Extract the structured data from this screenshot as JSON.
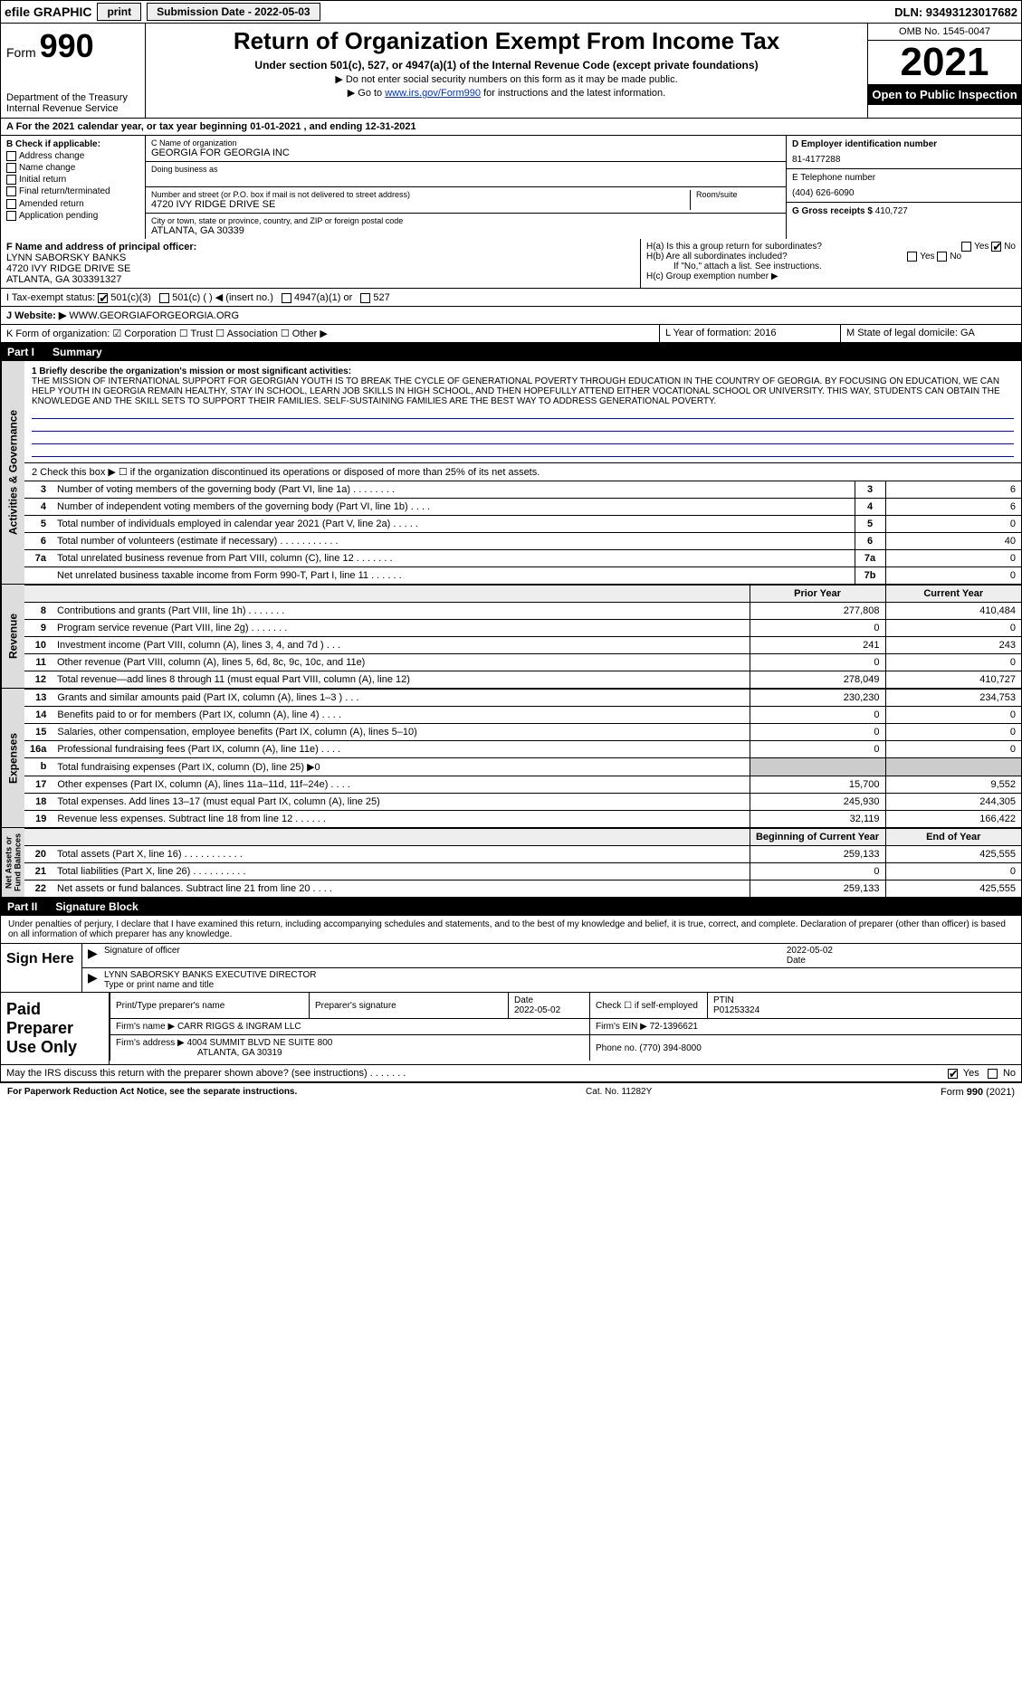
{
  "top": {
    "efile": "efile GRAPHIC",
    "print_btn": "print",
    "sub_date_label": "Submission Date - 2022-05-03",
    "dln": "DLN: 93493123017682"
  },
  "header": {
    "form_prefix": "Form",
    "form_num": "990",
    "dept": "Department of the Treasury",
    "irs": "Internal Revenue Service",
    "title": "Return of Organization Exempt From Income Tax",
    "subtitle": "Under section 501(c), 527, or 4947(a)(1) of the Internal Revenue Code (except private foundations)",
    "note1": "▶ Do not enter social security numbers on this form as it may be made public.",
    "note2_pre": "▶ Go to ",
    "note2_link": "www.irs.gov/Form990",
    "note2_post": " for instructions and the latest information.",
    "omb": "OMB No. 1545-0047",
    "year": "2021",
    "open": "Open to Public Inspection"
  },
  "period": "A For the 2021 calendar year, or tax year beginning 01-01-2021    , and ending 12-31-2021",
  "boxB": {
    "label": "B Check if applicable:",
    "opts": [
      "Address change",
      "Name change",
      "Initial return",
      "Final return/terminated",
      "Amended return",
      "Application pending"
    ]
  },
  "boxC": {
    "name_lbl": "C Name of organization",
    "name": "GEORGIA FOR GEORGIA INC",
    "dba_lbl": "Doing business as",
    "dba": "",
    "addr_lbl": "Number and street (or P.O. box if mail is not delivered to street address)",
    "addr": "4720 IVY RIDGE DRIVE SE",
    "room_lbl": "Room/suite",
    "city_lbl": "City or town, state or province, country, and ZIP or foreign postal code",
    "city": "ATLANTA, GA  30339"
  },
  "boxD": {
    "lbl": "D Employer identification number",
    "val": "81-4177288"
  },
  "boxE": {
    "lbl": "E Telephone number",
    "val": "(404) 626-6090"
  },
  "boxG": {
    "lbl": "G Gross receipts $",
    "val": "410,727"
  },
  "boxF": {
    "lbl": "F  Name and address of principal officer:",
    "name": "LYNN SABORSKY BANKS",
    "addr1": "4720 IVY RIDGE DRIVE SE",
    "addr2": "ATLANTA, GA  303391327"
  },
  "boxH": {
    "a": "H(a)  Is this a group return for subordinates?",
    "b": "H(b)  Are all subordinates included?",
    "b_note": "If \"No,\" attach a list. See instructions.",
    "c": "H(c)  Group exemption number ▶"
  },
  "boxI": {
    "lbl": "I    Tax-exempt status:",
    "opts": [
      "501(c)(3)",
      "501(c) (  ) ◀ (insert no.)",
      "4947(a)(1) or",
      "527"
    ]
  },
  "boxJ": {
    "lbl": "J   Website: ▶",
    "val": "WWW.GEORGIAFORGEORGIA.ORG"
  },
  "boxK": "K Form of organization:    ☑ Corporation  ☐ Trust  ☐ Association  ☐ Other ▶",
  "boxL": {
    "lbl": "L Year of formation:",
    "val": "2016"
  },
  "boxM": {
    "lbl": "M State of legal domicile:",
    "val": "GA"
  },
  "part1": {
    "title": "Part I",
    "name": "Summary",
    "mission_lbl": "1   Briefly describe the organization's mission or most significant activities:",
    "mission": "THE MISSION OF INTERNATIONAL SUPPORT FOR GEORGIAN YOUTH IS TO BREAK THE CYCLE OF GENERATIONAL POVERTY THROUGH EDUCATION IN THE COUNTRY OF GEORGIA. BY FOCUSING ON EDUCATION, WE CAN HELP YOUTH IN GEORGIA REMAIN HEALTHY, STAY IN SCHOOL, LEARN JOB SKILLS IN HIGH SCHOOL, AND THEN HOPEFULLY ATTEND EITHER VOCATIONAL SCHOOL OR UNIVERSITY. THIS WAY, STUDENTS CAN OBTAIN THE KNOWLEDGE AND THE SKILL SETS TO SUPPORT THEIR FAMILIES. SELF-SUSTAINING FAMILIES ARE THE BEST WAY TO ADDRESS GENERATIONAL POVERTY.",
    "line2": "2   Check this box ▶ ☐ if the organization discontinued its operations or disposed of more than 25% of its net assets.",
    "gov_rows": [
      {
        "n": "3",
        "t": "Number of voting members of the governing body (Part VI, line 1a)   .    .    .    .    .    .    .    .",
        "box": "3",
        "v": "6"
      },
      {
        "n": "4",
        "t": "Number of independent voting members of the governing body (Part VI, line 1b)   .    .    .    .",
        "box": "4",
        "v": "6"
      },
      {
        "n": "5",
        "t": "Total number of individuals employed in calendar year 2021 (Part V, line 2a)   .    .    .    .    .",
        "box": "5",
        "v": "0"
      },
      {
        "n": "6",
        "t": "Total number of volunteers (estimate if necessary)   .    .    .    .    .    .    .    .    .    .    .",
        "box": "6",
        "v": "40"
      },
      {
        "n": "7a",
        "t": "Total unrelated business revenue from Part VIII, column (C), line 12   .    .    .    .    .    .    .",
        "box": "7a",
        "v": "0"
      },
      {
        "n": "",
        "t": "Net unrelated business taxable income from Form 990-T, Part I, line 11   .    .    .    .    .    .",
        "box": "7b",
        "v": "0"
      }
    ],
    "col_hdr": [
      "Prior Year",
      "Current Year"
    ],
    "rev_rows": [
      {
        "n": "8",
        "t": "Contributions and grants (Part VIII, line 1h)   .    .    .    .    .    .    .",
        "p": "277,808",
        "c": "410,484"
      },
      {
        "n": "9",
        "t": "Program service revenue (Part VIII, line 2g)   .    .    .    .    .    .    .",
        "p": "0",
        "c": "0"
      },
      {
        "n": "10",
        "t": "Investment income (Part VIII, column (A), lines 3, 4, and 7d )   .    .    .",
        "p": "241",
        "c": "243"
      },
      {
        "n": "11",
        "t": "Other revenue (Part VIII, column (A), lines 5, 6d, 8c, 9c, 10c, and 11e)",
        "p": "0",
        "c": "0"
      },
      {
        "n": "12",
        "t": "Total revenue—add lines 8 through 11 (must equal Part VIII, column (A), line 12)",
        "p": "278,049",
        "c": "410,727"
      }
    ],
    "exp_rows": [
      {
        "n": "13",
        "t": "Grants and similar amounts paid (Part IX, column (A), lines 1–3 )   .    .    .",
        "p": "230,230",
        "c": "234,753"
      },
      {
        "n": "14",
        "t": "Benefits paid to or for members (Part IX, column (A), line 4)   .    .    .    .",
        "p": "0",
        "c": "0"
      },
      {
        "n": "15",
        "t": "Salaries, other compensation, employee benefits (Part IX, column (A), lines 5–10)",
        "p": "0",
        "c": "0"
      },
      {
        "n": "16a",
        "t": "Professional fundraising fees (Part IX, column (A), line 11e)   .    .    .    .",
        "p": "0",
        "c": "0"
      },
      {
        "n": "b",
        "t": "Total fundraising expenses (Part IX, column (D), line 25) ▶0",
        "p": "",
        "c": "",
        "shade": true
      },
      {
        "n": "17",
        "t": "Other expenses (Part IX, column (A), lines 11a–11d, 11f–24e)   .    .    .    .",
        "p": "15,700",
        "c": "9,552"
      },
      {
        "n": "18",
        "t": "Total expenses. Add lines 13–17 (must equal Part IX, column (A), line 25)",
        "p": "245,930",
        "c": "244,305"
      },
      {
        "n": "19",
        "t": "Revenue less expenses. Subtract line 18 from line 12   .    .    .    .    .    .",
        "p": "32,119",
        "c": "166,422"
      }
    ],
    "na_hdr": [
      "Beginning of Current Year",
      "End of Year"
    ],
    "na_rows": [
      {
        "n": "20",
        "t": "Total assets (Part X, line 16)   .    .    .    .    .    .    .    .    .    .    .",
        "p": "259,133",
        "c": "425,555"
      },
      {
        "n": "21",
        "t": "Total liabilities (Part X, line 26)   .    .    .    .    .    .    .    .    .    .",
        "p": "0",
        "c": "0"
      },
      {
        "n": "22",
        "t": "Net assets or fund balances. Subtract line 21 from line 20   .    .    .    .",
        "p": "259,133",
        "c": "425,555"
      }
    ],
    "vlabels": {
      "gov": "Activities & Governance",
      "rev": "Revenue",
      "exp": "Expenses",
      "na": "Net Assets or Fund Balances"
    }
  },
  "part2": {
    "title": "Part II",
    "name": "Signature Block",
    "declare": "Under penalties of perjury, I declare that I have examined this return, including accompanying schedules and statements, and to the best of my knowledge and belief, it is true, correct, and complete. Declaration of preparer (other than officer) is based on all information of which preparer has any knowledge.",
    "sign_here": "Sign Here",
    "sig_officer": "Signature of officer",
    "sig_date": "2022-05-02",
    "sig_date_lbl": "Date",
    "sig_name": "LYNN SABORSKY BANKS EXECUTIVE DIRECTOR",
    "sig_name_lbl": "Type or print name and title",
    "paid": "Paid Preparer Use Only",
    "prep": {
      "name_lbl": "Print/Type preparer's name",
      "sig_lbl": "Preparer's signature",
      "date_lbl": "Date",
      "date": "2022-05-02",
      "check_lbl": "Check ☐ if self-employed",
      "ptin_lbl": "PTIN",
      "ptin": "P01253324",
      "firm_name_lbl": "Firm's name    ▶",
      "firm_name": "CARR RIGGS & INGRAM LLC",
      "firm_ein_lbl": "Firm's EIN ▶",
      "firm_ein": "72-1396621",
      "firm_addr_lbl": "Firm's address ▶",
      "firm_addr": "4004 SUMMIT BLVD NE SUITE 800",
      "firm_city": "ATLANTA, GA  30319",
      "phone_lbl": "Phone no.",
      "phone": "(770) 394-8000"
    },
    "discuss": "May the IRS discuss this return with the preparer shown above? (see instructions)   .    .    .    .    .    .    .",
    "discuss_yes": "Yes",
    "discuss_no": "No"
  },
  "footer": {
    "left": "For Paperwork Reduction Act Notice, see the separate instructions.",
    "mid": "Cat. No. 11282Y",
    "right": "Form 990 (2021)"
  }
}
